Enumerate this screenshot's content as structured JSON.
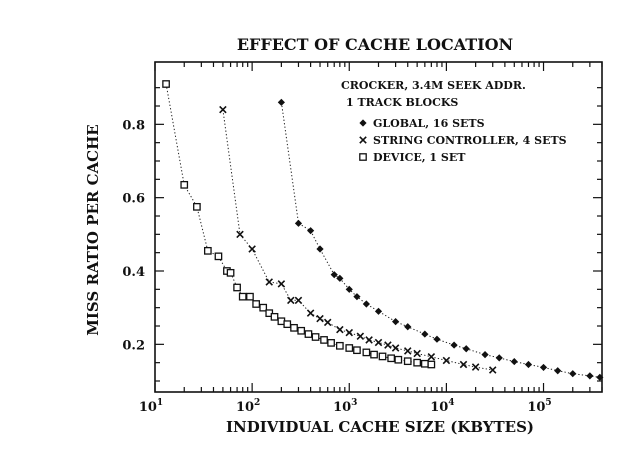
{
  "chart_data": {
    "type": "scatter",
    "title": "EFFECT OF CACHE LOCATION",
    "xlabel": "INDIVIDUAL CACHE SIZE (KBYTES)",
    "ylabel": "MISS RATIO PER CACHE",
    "xscale": "log",
    "xlim": [
      10,
      400000
    ],
    "ylim": [
      0.07,
      0.97
    ],
    "x_ticks": [
      {
        "value": 10,
        "base": "10",
        "exp": "1"
      },
      {
        "value": 100,
        "base": "10",
        "exp": "2"
      },
      {
        "value": 1000,
        "base": "10",
        "exp": "3"
      },
      {
        "value": 10000,
        "base": "10",
        "exp": "4"
      },
      {
        "value": 100000,
        "base": "10",
        "exp": "5"
      }
    ],
    "y_ticks": [
      {
        "value": 0.2,
        "label": "0.2"
      },
      {
        "value": 0.4,
        "label": "0.4"
      },
      {
        "value": 0.6,
        "label": "0.6"
      },
      {
        "value": 0.8,
        "label": "0.8"
      }
    ],
    "grid": false,
    "legend_position": "top-right",
    "legend_header": [
      "CROCKER, 3.4M SEEK ADDR.",
      "1 TRACK BLOCKS"
    ],
    "series": [
      {
        "name": "GLOBAL, 16 SETS",
        "marker": "diamond",
        "points": [
          [
            200,
            0.86
          ],
          [
            300,
            0.53
          ],
          [
            400,
            0.51
          ],
          [
            500,
            0.46
          ],
          [
            700,
            0.39
          ],
          [
            800,
            0.38
          ],
          [
            1000,
            0.35
          ],
          [
            1200,
            0.33
          ],
          [
            1500,
            0.31
          ],
          [
            2000,
            0.29
          ],
          [
            3000,
            0.262
          ],
          [
            4000,
            0.248
          ],
          [
            6000,
            0.228
          ],
          [
            8000,
            0.214
          ],
          [
            12000,
            0.198
          ],
          [
            16000,
            0.188
          ],
          [
            25000,
            0.172
          ],
          [
            35000,
            0.163
          ],
          [
            50000,
            0.153
          ],
          [
            70000,
            0.145
          ],
          [
            100000,
            0.137
          ],
          [
            140000,
            0.128
          ],
          [
            200000,
            0.12
          ],
          [
            300000,
            0.114
          ],
          [
            380000,
            0.11
          ]
        ]
      },
      {
        "name": "STRING CONTROLLER, 4 SETS",
        "marker": "x",
        "points": [
          [
            50,
            0.84
          ],
          [
            75,
            0.5
          ],
          [
            100,
            0.46
          ],
          [
            150,
            0.37
          ],
          [
            200,
            0.365
          ],
          [
            250,
            0.32
          ],
          [
            300,
            0.32
          ],
          [
            400,
            0.285
          ],
          [
            500,
            0.27
          ],
          [
            600,
            0.26
          ],
          [
            800,
            0.24
          ],
          [
            1000,
            0.232
          ],
          [
            1300,
            0.222
          ],
          [
            1600,
            0.212
          ],
          [
            2000,
            0.205
          ],
          [
            2500,
            0.198
          ],
          [
            3000,
            0.19
          ],
          [
            4000,
            0.182
          ],
          [
            5000,
            0.175
          ],
          [
            7000,
            0.166
          ],
          [
            10000,
            0.156
          ],
          [
            15000,
            0.145
          ],
          [
            20000,
            0.138
          ],
          [
            30000,
            0.13
          ]
        ]
      },
      {
        "name": "DEVICE, 1 SET",
        "marker": "square",
        "points": [
          [
            13,
            0.91
          ],
          [
            20,
            0.635
          ],
          [
            27,
            0.575
          ],
          [
            35,
            0.455
          ],
          [
            45,
            0.44
          ],
          [
            55,
            0.4
          ],
          [
            60,
            0.395
          ],
          [
            70,
            0.355
          ],
          [
            80,
            0.33
          ],
          [
            95,
            0.33
          ],
          [
            110,
            0.31
          ],
          [
            130,
            0.3
          ],
          [
            150,
            0.285
          ],
          [
            170,
            0.275
          ],
          [
            200,
            0.263
          ],
          [
            230,
            0.255
          ],
          [
            270,
            0.245
          ],
          [
            320,
            0.237
          ],
          [
            380,
            0.228
          ],
          [
            450,
            0.22
          ],
          [
            550,
            0.212
          ],
          [
            650,
            0.204
          ],
          [
            800,
            0.196
          ],
          [
            1000,
            0.19
          ],
          [
            1200,
            0.184
          ],
          [
            1500,
            0.178
          ],
          [
            1800,
            0.172
          ],
          [
            2200,
            0.167
          ],
          [
            2700,
            0.162
          ],
          [
            3200,
            0.158
          ],
          [
            4000,
            0.154
          ],
          [
            5000,
            0.15
          ],
          [
            6000,
            0.147
          ],
          [
            7000,
            0.145
          ]
        ]
      }
    ]
  }
}
